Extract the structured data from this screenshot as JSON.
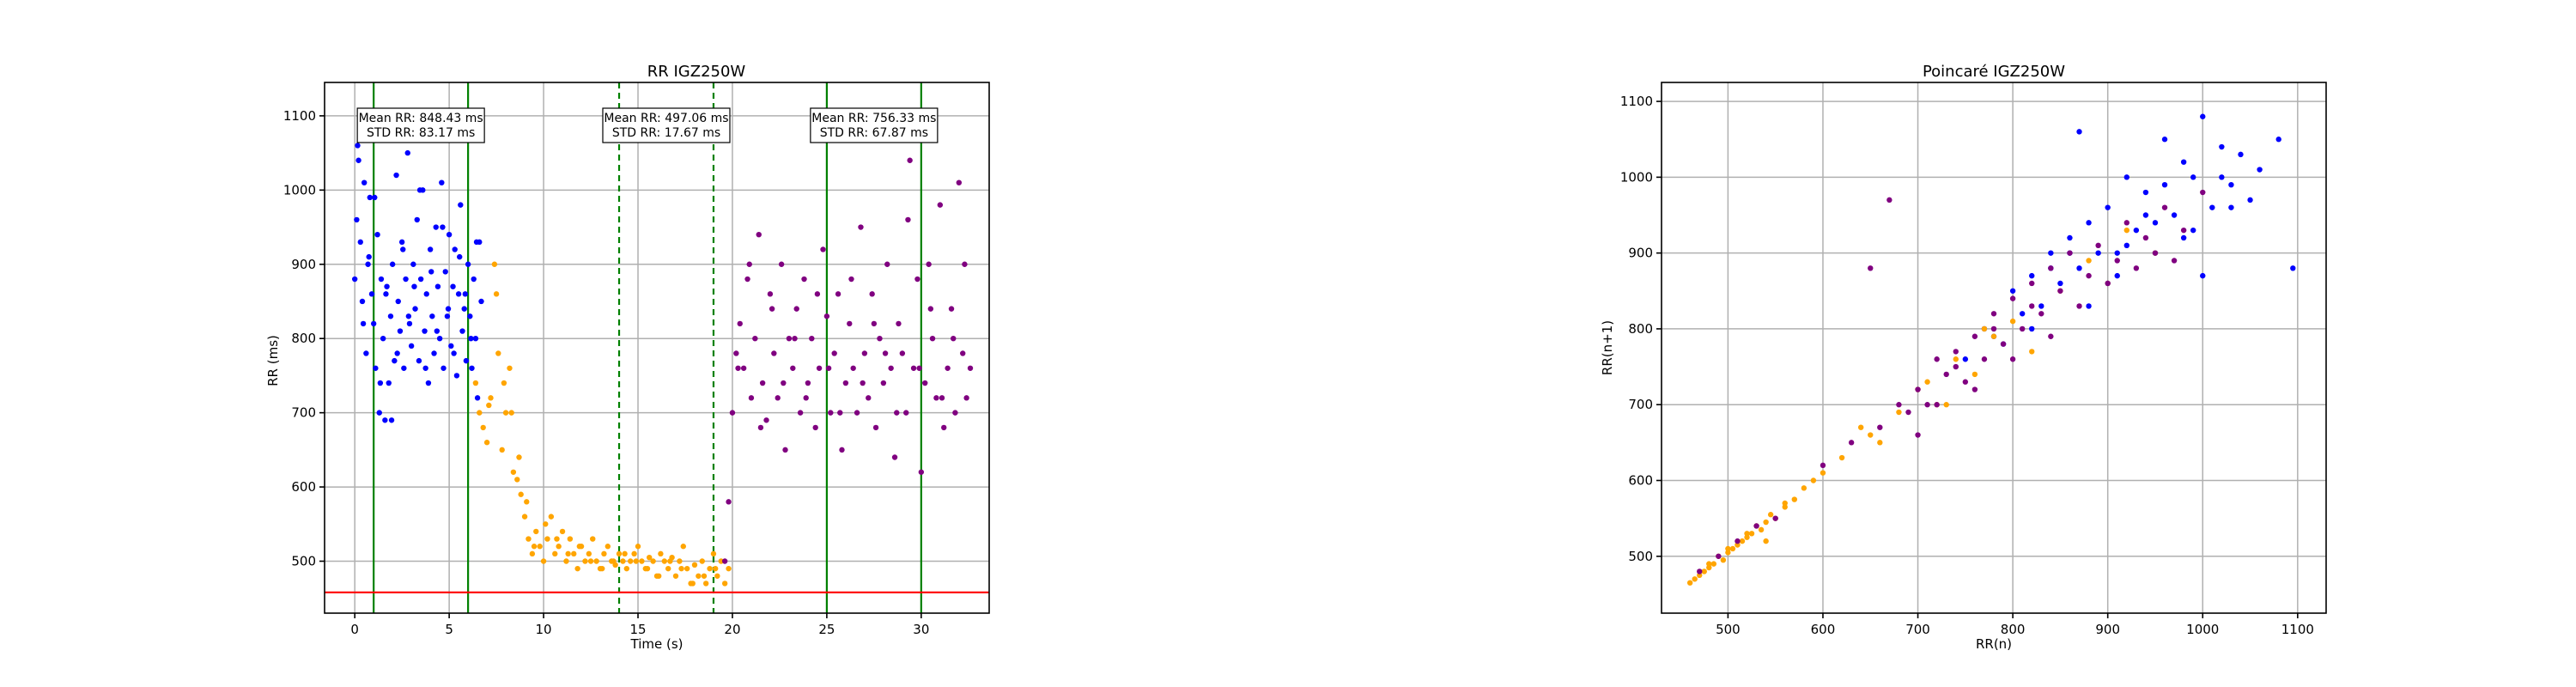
{
  "figure": {
    "background": "#ffffff"
  },
  "colors": {
    "seg_blue": "#0000ff",
    "seg_orange": "#ffa500",
    "seg_purple": "#800080",
    "marker_green": "#008000",
    "threshold_red": "#ff0000",
    "grid": "#b0b0b0"
  },
  "chart_data": [
    {
      "type": "scatter",
      "title": "RR IGZ250W",
      "xlabel": "Time (s)",
      "ylabel": "RR (ms)",
      "xlim": [
        -1.6,
        33.6
      ],
      "ylim": [
        430,
        1145
      ],
      "xticks": [
        0,
        5,
        10,
        15,
        20,
        25,
        30
      ],
      "yticks": [
        500,
        600,
        700,
        800,
        900,
        1000,
        1100
      ],
      "grid": true,
      "threshold_line": {
        "y": 458,
        "color": "#ff0000"
      },
      "vertical_lines": [
        {
          "x": 1,
          "style": "solid"
        },
        {
          "x": 6,
          "style": "solid"
        },
        {
          "x": 14,
          "style": "dashed"
        },
        {
          "x": 19,
          "style": "dashed"
        },
        {
          "x": 25,
          "style": "solid"
        },
        {
          "x": 30,
          "style": "solid"
        }
      ],
      "annotations": [
        {
          "line1": "Mean RR: 848.43 ms",
          "line2": "STD RR: 83.17 ms",
          "x_center": 3.5
        },
        {
          "line1": "Mean RR: 497.06 ms",
          "line2": "STD RR: 17.67 ms",
          "x_center": 16.5
        },
        {
          "line1": "Mean RR: 756.33 ms",
          "line2": "STD RR: 67.87 ms",
          "x_center": 27.5
        }
      ],
      "series": [
        {
          "color": "#0000ff",
          "x": [
            0.0,
            0.1,
            0.2,
            0.3,
            0.4,
            0.5,
            0.6,
            0.7,
            0.8,
            0.9,
            1.0,
            1.1,
            1.2,
            1.3,
            1.4,
            1.5,
            1.6,
            1.7,
            1.8,
            1.9,
            2.0,
            2.1,
            2.2,
            2.3,
            2.4,
            2.5,
            2.6,
            2.7,
            2.8,
            2.9,
            3.0,
            3.1,
            3.2,
            3.3,
            3.4,
            3.5,
            3.6,
            3.7,
            3.8,
            3.9,
            4.0,
            4.1,
            4.2,
            4.3,
            4.4,
            4.5,
            4.6,
            4.7,
            4.8,
            4.9,
            5.0,
            5.1,
            5.2,
            5.3,
            5.4,
            5.5,
            5.6,
            5.7,
            5.8,
            5.9,
            6.0,
            6.1,
            6.2,
            6.3,
            6.4,
            6.5,
            6.6,
            6.7,
            0.15,
            0.45,
            0.75,
            1.05,
            1.35,
            1.65,
            1.95,
            2.25,
            2.55,
            2.85,
            3.15,
            3.45,
            3.75,
            4.05,
            4.35,
            4.65,
            4.95,
            5.25,
            5.55,
            5.85,
            6.15,
            6.45
          ],
          "y": [
            880,
            960,
            1040,
            930,
            850,
            1010,
            780,
            900,
            990,
            860,
            820,
            760,
            940,
            700,
            880,
            800,
            690,
            870,
            740,
            830,
            900,
            770,
            1020,
            850,
            810,
            930,
            760,
            880,
            1050,
            820,
            790,
            900,
            840,
            960,
            770,
            880,
            1000,
            810,
            860,
            740,
            920,
            830,
            780,
            950,
            870,
            800,
            1010,
            760,
            890,
            830,
            940,
            790,
            870,
            920,
            750,
            860,
            980,
            810,
            840,
            770,
            900,
            830,
            760,
            880,
            800,
            720,
            930,
            850,
            1060,
            820,
            910,
            990,
            740,
            860,
            690,
            780,
            920,
            830,
            870,
            1000,
            760,
            890,
            810,
            950,
            840,
            780,
            910,
            860,
            800,
            930
          ]
        },
        {
          "color": "#ffa500",
          "x": [
            6.4,
            6.6,
            6.8,
            7.0,
            7.2,
            7.4,
            7.6,
            7.8,
            8.0,
            8.2,
            8.4,
            8.6,
            8.8,
            9.0,
            9.2,
            9.4,
            9.6,
            9.8,
            10.0,
            10.2,
            10.4,
            10.6,
            10.8,
            11.0,
            11.2,
            11.4,
            11.6,
            11.8,
            12.0,
            12.2,
            12.4,
            12.6,
            12.8,
            13.0,
            13.2,
            13.4,
            13.6,
            13.8,
            14.0,
            14.2,
            14.4,
            14.6,
            14.8,
            15.0,
            15.2,
            15.4,
            15.6,
            15.8,
            16.0,
            16.2,
            16.4,
            16.6,
            16.8,
            17.0,
            17.2,
            17.4,
            17.6,
            17.8,
            18.0,
            18.2,
            18.4,
            18.6,
            18.8,
            19.0,
            19.2,
            19.4,
            19.6,
            19.8,
            7.1,
            7.5,
            7.9,
            8.3,
            8.7,
            9.1,
            9.5,
            10.1,
            10.7,
            11.3,
            11.9,
            12.5,
            13.1,
            13.7,
            14.3,
            14.9,
            15.5,
            16.1,
            16.7,
            17.3,
            17.9,
            18.5,
            19.1
          ],
          "y": [
            740,
            700,
            680,
            660,
            720,
            900,
            780,
            650,
            700,
            760,
            620,
            610,
            590,
            560,
            530,
            510,
            540,
            520,
            500,
            530,
            560,
            510,
            520,
            540,
            500,
            530,
            510,
            490,
            520,
            500,
            510,
            530,
            500,
            490,
            510,
            520,
            500,
            495,
            510,
            500,
            490,
            500,
            510,
            520,
            500,
            490,
            505,
            500,
            480,
            510,
            500,
            490,
            505,
            480,
            500,
            520,
            490,
            470,
            495,
            480,
            500,
            470,
            490,
            510,
            480,
            500,
            470,
            490,
            710,
            860,
            740,
            700,
            640,
            580,
            520,
            550,
            530,
            510,
            520,
            500,
            490,
            500,
            510,
            500,
            490,
            480,
            500,
            490,
            470,
            480,
            490
          ]
        },
        {
          "color": "#800080",
          "x": [
            19.6,
            19.8,
            20.0,
            20.2,
            20.4,
            20.6,
            20.8,
            21.0,
            21.2,
            21.4,
            21.6,
            21.8,
            22.0,
            22.2,
            22.4,
            22.6,
            22.8,
            23.0,
            23.2,
            23.4,
            23.6,
            23.8,
            24.0,
            24.2,
            24.4,
            24.6,
            24.8,
            25.0,
            25.2,
            25.4,
            25.6,
            25.8,
            26.0,
            26.2,
            26.4,
            26.6,
            26.8,
            27.0,
            27.2,
            27.4,
            27.6,
            27.8,
            28.0,
            28.2,
            28.4,
            28.6,
            28.8,
            29.0,
            29.2,
            29.4,
            29.6,
            29.8,
            30.0,
            30.2,
            30.4,
            30.6,
            30.8,
            31.0,
            31.2,
            31.4,
            31.6,
            31.8,
            32.0,
            32.2,
            32.4,
            32.6,
            20.3,
            20.9,
            21.5,
            22.1,
            22.7,
            23.3,
            23.9,
            24.5,
            25.1,
            25.7,
            26.3,
            26.9,
            27.5,
            28.1,
            28.7,
            29.3,
            29.9,
            30.5,
            31.1,
            31.7,
            32.3
          ],
          "y": [
            500,
            580,
            700,
            780,
            820,
            760,
            880,
            720,
            800,
            940,
            740,
            690,
            860,
            780,
            720,
            900,
            650,
            800,
            760,
            840,
            700,
            880,
            740,
            800,
            680,
            760,
            920,
            830,
            700,
            780,
            860,
            650,
            740,
            820,
            760,
            700,
            950,
            780,
            720,
            860,
            680,
            800,
            740,
            900,
            760,
            640,
            820,
            780,
            700,
            1040,
            760,
            880,
            620,
            740,
            900,
            800,
            720,
            980,
            680,
            760,
            840,
            700,
            1010,
            780,
            720,
            760,
            760,
            900,
            680,
            840,
            740,
            800,
            720,
            860,
            760,
            700,
            880,
            740,
            820,
            780,
            700,
            960,
            760,
            840,
            720,
            800,
            900
          ]
        }
      ]
    },
    {
      "type": "scatter",
      "title": "Poincaré IGZ250W",
      "xlabel": "RR(n)",
      "ylabel": "RR(n+1)",
      "xlim": [
        430,
        1130
      ],
      "ylim": [
        425,
        1125
      ],
      "xticks": [
        500,
        600,
        700,
        800,
        900,
        1000,
        1100
      ],
      "yticks": [
        500,
        600,
        700,
        800,
        900,
        1000,
        1100
      ],
      "grid": true,
      "series": [
        {
          "color": "#0000ff",
          "x": [
            750,
            770,
            790,
            800,
            810,
            820,
            830,
            840,
            850,
            860,
            870,
            880,
            890,
            900,
            910,
            920,
            930,
            940,
            950,
            960,
            970,
            980,
            990,
            1000,
            1010,
            1020,
            1030,
            1040,
            1050,
            1060,
            1080,
            1095,
            820,
            860,
            900,
            940,
            980,
            1020,
            780,
            840,
            880,
            920,
            960,
            1000,
            870,
            910,
            950,
            990,
            1030
          ],
          "y": [
            760,
            800,
            780,
            850,
            820,
            870,
            830,
            900,
            860,
            920,
            880,
            940,
            900,
            960,
            870,
            1000,
            930,
            980,
            900,
            1050,
            950,
            1020,
            930,
            1080,
            960,
            1000,
            990,
            1030,
            970,
            1010,
            1050,
            880,
            800,
            900,
            860,
            950,
            920,
            1040,
            790,
            880,
            830,
            910,
            990,
            870,
            1060,
            900,
            940,
            1000,
            960
          ]
        },
        {
          "color": "#ffa500",
          "x": [
            460,
            465,
            470,
            475,
            480,
            485,
            490,
            495,
            500,
            505,
            510,
            515,
            520,
            525,
            530,
            535,
            540,
            545,
            550,
            560,
            570,
            580,
            600,
            620,
            650,
            680,
            700,
            720,
            740,
            760,
            780,
            800,
            820,
            850,
            880,
            900,
            920,
            950,
            480,
            500,
            520,
            540,
            560,
            590,
            640,
            660,
            710,
            730,
            770
          ],
          "y": [
            465,
            470,
            475,
            480,
            485,
            490,
            500,
            495,
            505,
            510,
            515,
            520,
            525,
            530,
            540,
            535,
            545,
            555,
            550,
            565,
            575,
            590,
            610,
            630,
            660,
            690,
            720,
            700,
            760,
            740,
            790,
            810,
            770,
            850,
            890,
            860,
            930,
            900,
            490,
            510,
            530,
            520,
            570,
            600,
            670,
            650,
            730,
            700,
            800
          ]
        },
        {
          "color": "#800080",
          "x": [
            470,
            490,
            510,
            530,
            550,
            600,
            630,
            650,
            660,
            680,
            690,
            700,
            710,
            720,
            730,
            740,
            750,
            760,
            770,
            780,
            790,
            800,
            810,
            820,
            830,
            840,
            850,
            860,
            870,
            880,
            890,
            900,
            910,
            920,
            930,
            940,
            950,
            960,
            970,
            980,
            1000,
            670,
            700,
            720,
            740,
            760,
            780,
            800,
            820,
            840
          ],
          "y": [
            480,
            500,
            520,
            540,
            550,
            620,
            650,
            880,
            670,
            700,
            690,
            720,
            700,
            760,
            740,
            770,
            730,
            790,
            760,
            820,
            780,
            840,
            800,
            860,
            820,
            880,
            850,
            900,
            830,
            870,
            910,
            860,
            890,
            940,
            880,
            920,
            900,
            960,
            890,
            930,
            980,
            970,
            660,
            700,
            750,
            720,
            800,
            760,
            830,
            790
          ]
        }
      ]
    }
  ]
}
